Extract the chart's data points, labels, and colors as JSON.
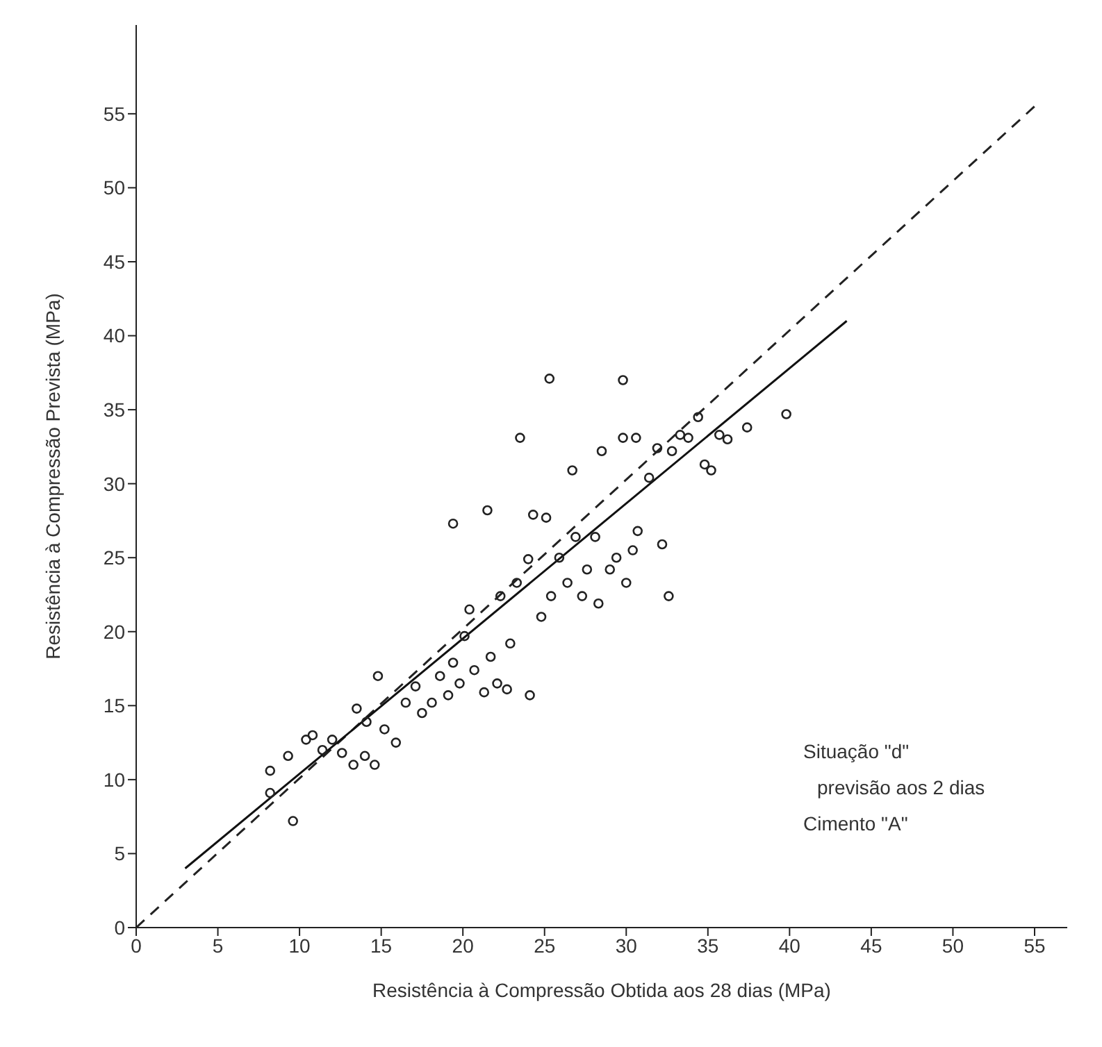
{
  "chart_data": {
    "type": "scatter",
    "xlabel": "Resistência à Compressão Obtida aos 28 dias (MPa)",
    "ylabel": "Resistência à Compressão Prevista (MPa)",
    "xlim": [
      0,
      57
    ],
    "ylim": [
      0,
      61
    ],
    "xticks": [
      0,
      5,
      10,
      15,
      20,
      25,
      30,
      35,
      40,
      45,
      50,
      55
    ],
    "yticks": [
      0,
      5,
      10,
      15,
      20,
      25,
      30,
      35,
      40,
      45,
      50,
      55
    ],
    "grid": false,
    "legend": false,
    "marker": "circle",
    "annotations": [
      "Situação \"d\"",
      "previsão aos 2 dias",
      "Cimento \"A\""
    ],
    "series": [
      {
        "color": "#222222",
        "x": [
          8.2,
          8.2,
          9.6,
          9.3,
          10.4,
          10.8,
          11.4,
          12.0,
          12.6,
          13.3,
          14.0,
          14.6,
          13.5,
          14.1,
          14.8,
          15.2,
          15.9,
          16.5,
          17.1,
          17.5,
          18.1,
          18.6,
          19.1,
          19.4,
          19.8,
          19.4,
          20.1,
          20.4,
          20.7,
          21.3,
          21.7,
          21.5,
          22.1,
          22.3,
          22.7,
          22.9,
          23.3,
          23.5,
          24.0,
          24.3,
          24.1,
          24.8,
          25.1,
          25.4,
          25.3,
          25.9,
          26.4,
          26.7,
          26.9,
          27.3,
          27.6,
          28.1,
          28.3,
          28.5,
          29.0,
          29.4,
          29.8,
          29.8,
          30.0,
          30.4,
          30.6,
          30.7,
          31.4,
          31.9,
          32.2,
          32.6,
          32.8,
          33.3,
          33.8,
          34.4,
          34.8,
          35.2,
          35.7,
          36.2,
          37.4,
          39.8
        ],
        "values": [
          10.6,
          9.1,
          7.2,
          11.6,
          12.7,
          13.0,
          12.0,
          12.7,
          11.8,
          11.0,
          11.6,
          11.0,
          14.8,
          13.9,
          17.0,
          13.4,
          12.5,
          15.2,
          16.3,
          14.5,
          15.2,
          17.0,
          15.7,
          17.9,
          16.5,
          27.3,
          19.7,
          21.5,
          17.4,
          15.9,
          18.3,
          28.2,
          16.5,
          22.4,
          16.1,
          19.2,
          23.3,
          33.1,
          24.9,
          27.9,
          15.7,
          21.0,
          27.7,
          22.4,
          37.1,
          25.0,
          23.3,
          30.9,
          26.4,
          22.4,
          24.2,
          26.4,
          21.9,
          32.2,
          24.2,
          25.0,
          33.1,
          37.0,
          23.3,
          25.5,
          33.1,
          26.8,
          30.4,
          32.4,
          25.9,
          22.4,
          32.2,
          33.3,
          33.1,
          34.5,
          31.3,
          30.9,
          33.3,
          33.0,
          33.8,
          34.7
        ]
      },
      {
        "type": "line",
        "color": "#222222",
        "line_style": "dashed",
        "marker": "none",
        "x": [
          0,
          55
        ],
        "values": [
          0,
          55.5
        ]
      },
      {
        "type": "line",
        "color": "#111111",
        "line_style": "solid",
        "marker": "none",
        "x": [
          3,
          43.5
        ],
        "values": [
          4,
          41
        ]
      }
    ]
  }
}
